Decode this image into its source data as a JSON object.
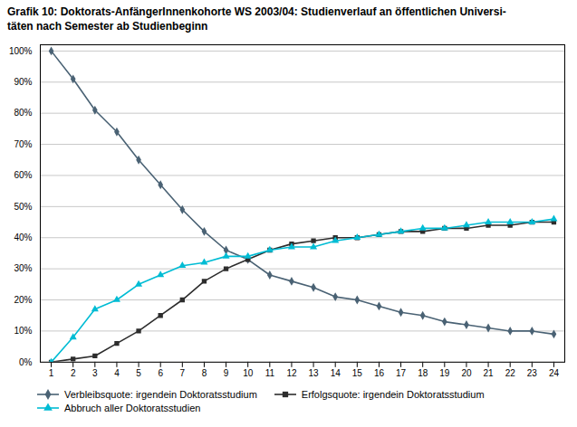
{
  "chart_data": {
    "type": "line",
    "title": "Grafik 10: Doktorats-AnfängerInnenkohorte WS 2003/04: Studienverlauf an öffentlichen Universi-\ntäten nach Semester ab Studienbeginn",
    "x": [
      1,
      2,
      3,
      4,
      5,
      6,
      7,
      8,
      9,
      10,
      11,
      12,
      13,
      14,
      15,
      16,
      17,
      18,
      19,
      20,
      21,
      22,
      23,
      24
    ],
    "series": [
      {
        "name": "Verbleibsquote: irgendein Doktoratsstudium",
        "color": "#4a6274",
        "marker": "diamond",
        "values": [
          1.0,
          0.91,
          0.81,
          0.74,
          0.65,
          0.57,
          0.49,
          0.42,
          0.36,
          0.33,
          0.28,
          0.26,
          0.24,
          0.21,
          0.2,
          0.18,
          0.16,
          0.15,
          0.13,
          0.12,
          0.11,
          0.1,
          0.1,
          0.09
        ]
      },
      {
        "name": "Erfolgsquote: irgendein Doktoratsstudium",
        "color": "#2d2d2d",
        "marker": "square",
        "values": [
          0.0,
          0.01,
          0.02,
          0.06,
          0.1,
          0.15,
          0.2,
          0.26,
          0.3,
          0.33,
          0.36,
          0.38,
          0.39,
          0.4,
          0.4,
          0.41,
          0.42,
          0.42,
          0.43,
          0.43,
          0.44,
          0.44,
          0.45,
          0.45
        ]
      },
      {
        "name": "Abbruch aller Doktoratsstudien",
        "color": "#00bcd4",
        "marker": "triangle",
        "values": [
          0.0,
          0.08,
          0.17,
          0.2,
          0.25,
          0.28,
          0.31,
          0.32,
          0.34,
          0.34,
          0.36,
          0.37,
          0.37,
          0.39,
          0.4,
          0.41,
          0.42,
          0.43,
          0.43,
          0.44,
          0.45,
          0.45,
          0.45,
          0.46
        ]
      }
    ],
    "xlim": [
      0.5,
      24.5
    ],
    "xticks": [
      1,
      2,
      3,
      4,
      5,
      6,
      7,
      8,
      9,
      10,
      11,
      12,
      13,
      14,
      15,
      16,
      17,
      18,
      19,
      20,
      21,
      22,
      23,
      24
    ],
    "ylim": [
      0,
      1.02
    ],
    "yticks": [
      {
        "value": 0.0,
        "label": "0%"
      },
      {
        "value": 0.1,
        "label": "10%"
      },
      {
        "value": 0.2,
        "label": "20%"
      },
      {
        "value": 0.3,
        "label": "30%"
      },
      {
        "value": 0.4,
        "label": "40%"
      },
      {
        "value": 0.5,
        "label": "50%"
      },
      {
        "value": 0.6,
        "label": "60%"
      },
      {
        "value": 0.7,
        "label": "70%"
      },
      {
        "value": 0.8,
        "label": "80%"
      },
      {
        "value": 0.9,
        "label": "90%"
      },
      {
        "value": 1.0,
        "label": "100%"
      }
    ],
    "grid": true,
    "legend": "lower left"
  }
}
